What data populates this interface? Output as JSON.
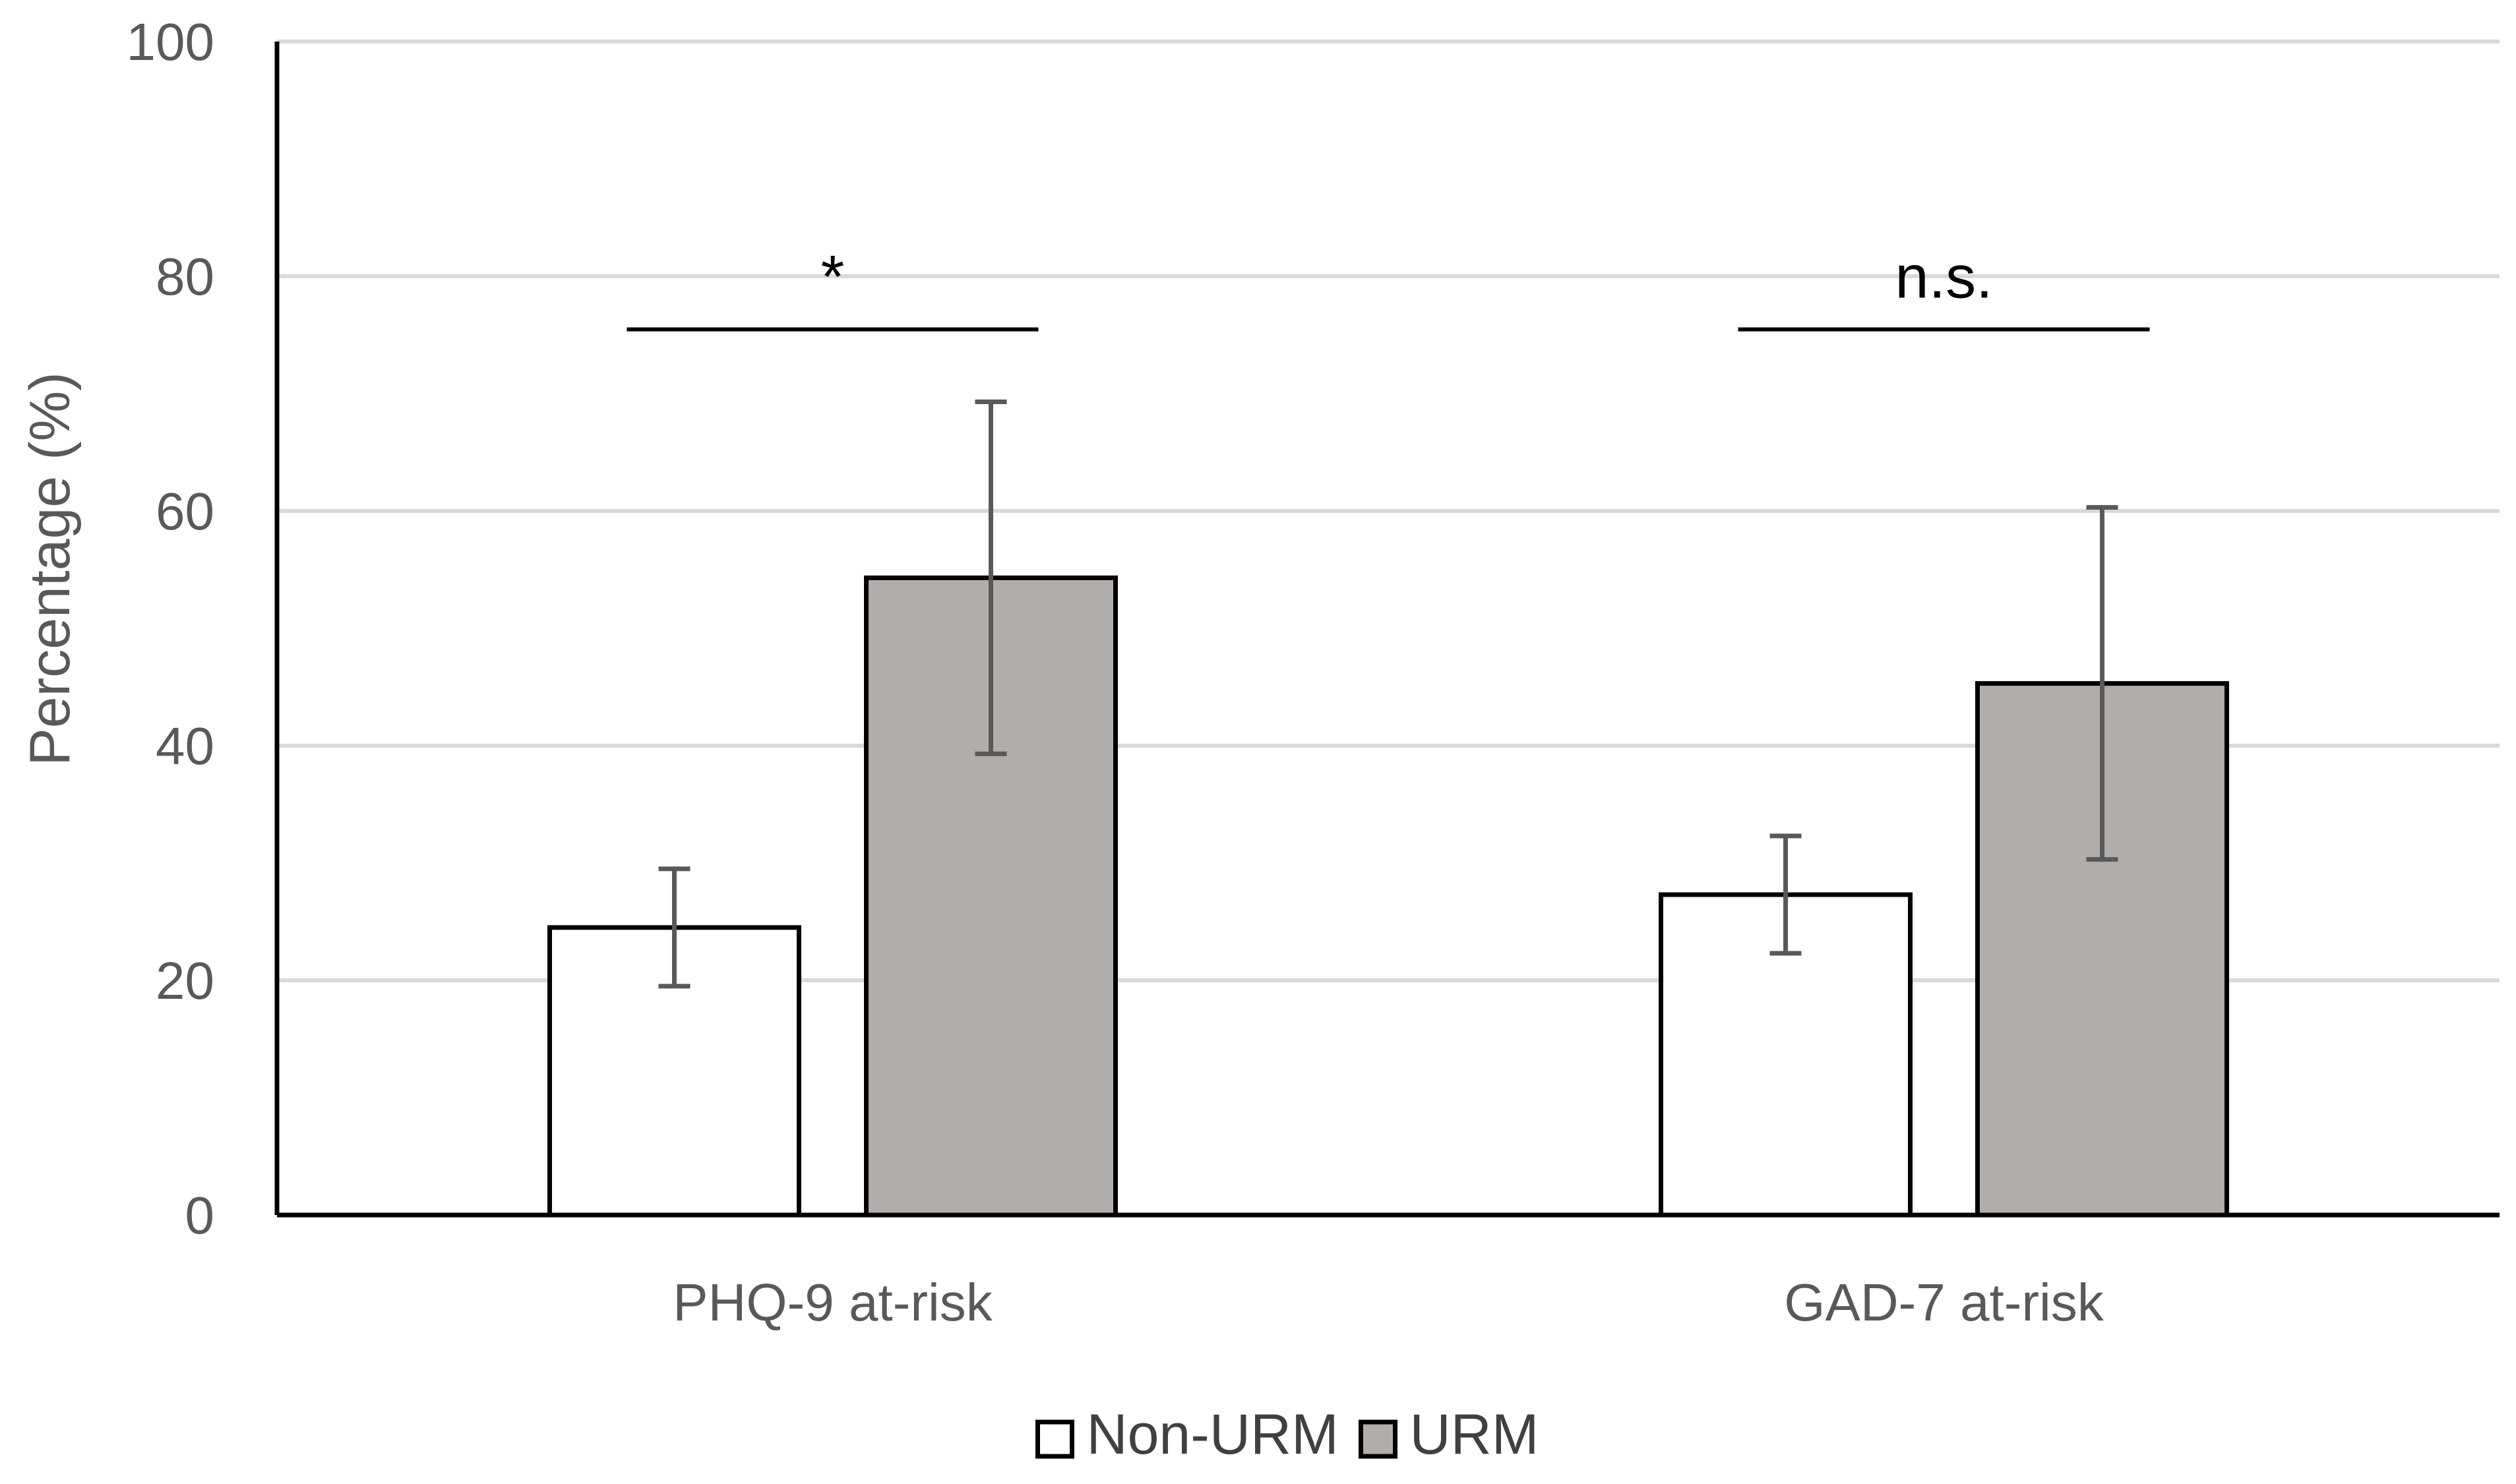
{
  "chart_data": {
    "type": "bar",
    "ylabel": "Percentage (%)",
    "ylim": [
      0,
      100
    ],
    "yticks": [
      0,
      20,
      40,
      60,
      80,
      100
    ],
    "ytick_labels": [
      "0",
      "20",
      "40",
      "60",
      "80",
      "100"
    ],
    "grid": true,
    "categories": [
      "PHQ-9 at-risk",
      "GAD-7 at-risk"
    ],
    "series": [
      {
        "name": "Non-URM",
        "color": "#ffffff",
        "values": [
          24.5,
          27.3
        ],
        "error_low": [
          19.5,
          22.3
        ],
        "error_high": [
          29.5,
          32.3
        ]
      },
      {
        "name": "URM",
        "color": "#b0adab",
        "values": [
          54.3,
          45.3
        ],
        "error_low": [
          39.3,
          30.3
        ],
        "error_high": [
          69.3,
          60.3
        ]
      }
    ],
    "annotations": [
      {
        "category_index": 0,
        "label": "*",
        "y": 78
      },
      {
        "category_index": 1,
        "label": "n.s.",
        "y": 78
      }
    ],
    "legend": {
      "placement": "bottom"
    }
  }
}
